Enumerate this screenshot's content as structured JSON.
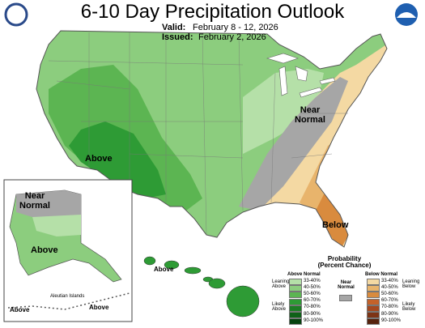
{
  "header": {
    "title": "6-10 Day Precipitation Outlook",
    "valid_label": "Valid:",
    "valid_dates": "February 8 - 12, 2026",
    "issued_label": "Issued:",
    "issued_date": "February 2, 2026"
  },
  "map_labels": {
    "conus_above": "Above",
    "conus_near_normal": "Near Normal",
    "conus_below": "Below",
    "alaska_near_normal": "Near Normal",
    "alaska_above": "Above",
    "aleutian_title": "Aleutian Islands",
    "aleutian_above_west": "Above",
    "aleutian_above_east": "Above",
    "hawaii_above": "Above"
  },
  "legend": {
    "title": "Probability (Percent Chance)",
    "above": {
      "heading": "Above Normal",
      "levels": [
        "33-40%",
        "40-50%",
        "50-60%",
        "60-70%",
        "70-80%",
        "80-90%",
        "90-100%"
      ],
      "colors": [
        "#b5e0a8",
        "#8ccd7e",
        "#5cb552",
        "#2e9b35",
        "#1c7d24",
        "#0f6118",
        "#07430f"
      ],
      "leaning": "Leaning Above",
      "likely": "Likely Above"
    },
    "near": {
      "heading": "Near Normal",
      "color": "#a6a6a6"
    },
    "below": {
      "heading": "Below Normal",
      "levels": [
        "33-40%",
        "40-50%",
        "50-60%",
        "60-70%",
        "70-80%",
        "80-90%",
        "90-100%"
      ],
      "colors": [
        "#f4d9a3",
        "#e8b46c",
        "#d98b3e",
        "#c4622a",
        "#a4481f",
        "#7d3416",
        "#56220d"
      ],
      "leaning": "Leaning Below",
      "likely": "Likely Below"
    }
  }
}
